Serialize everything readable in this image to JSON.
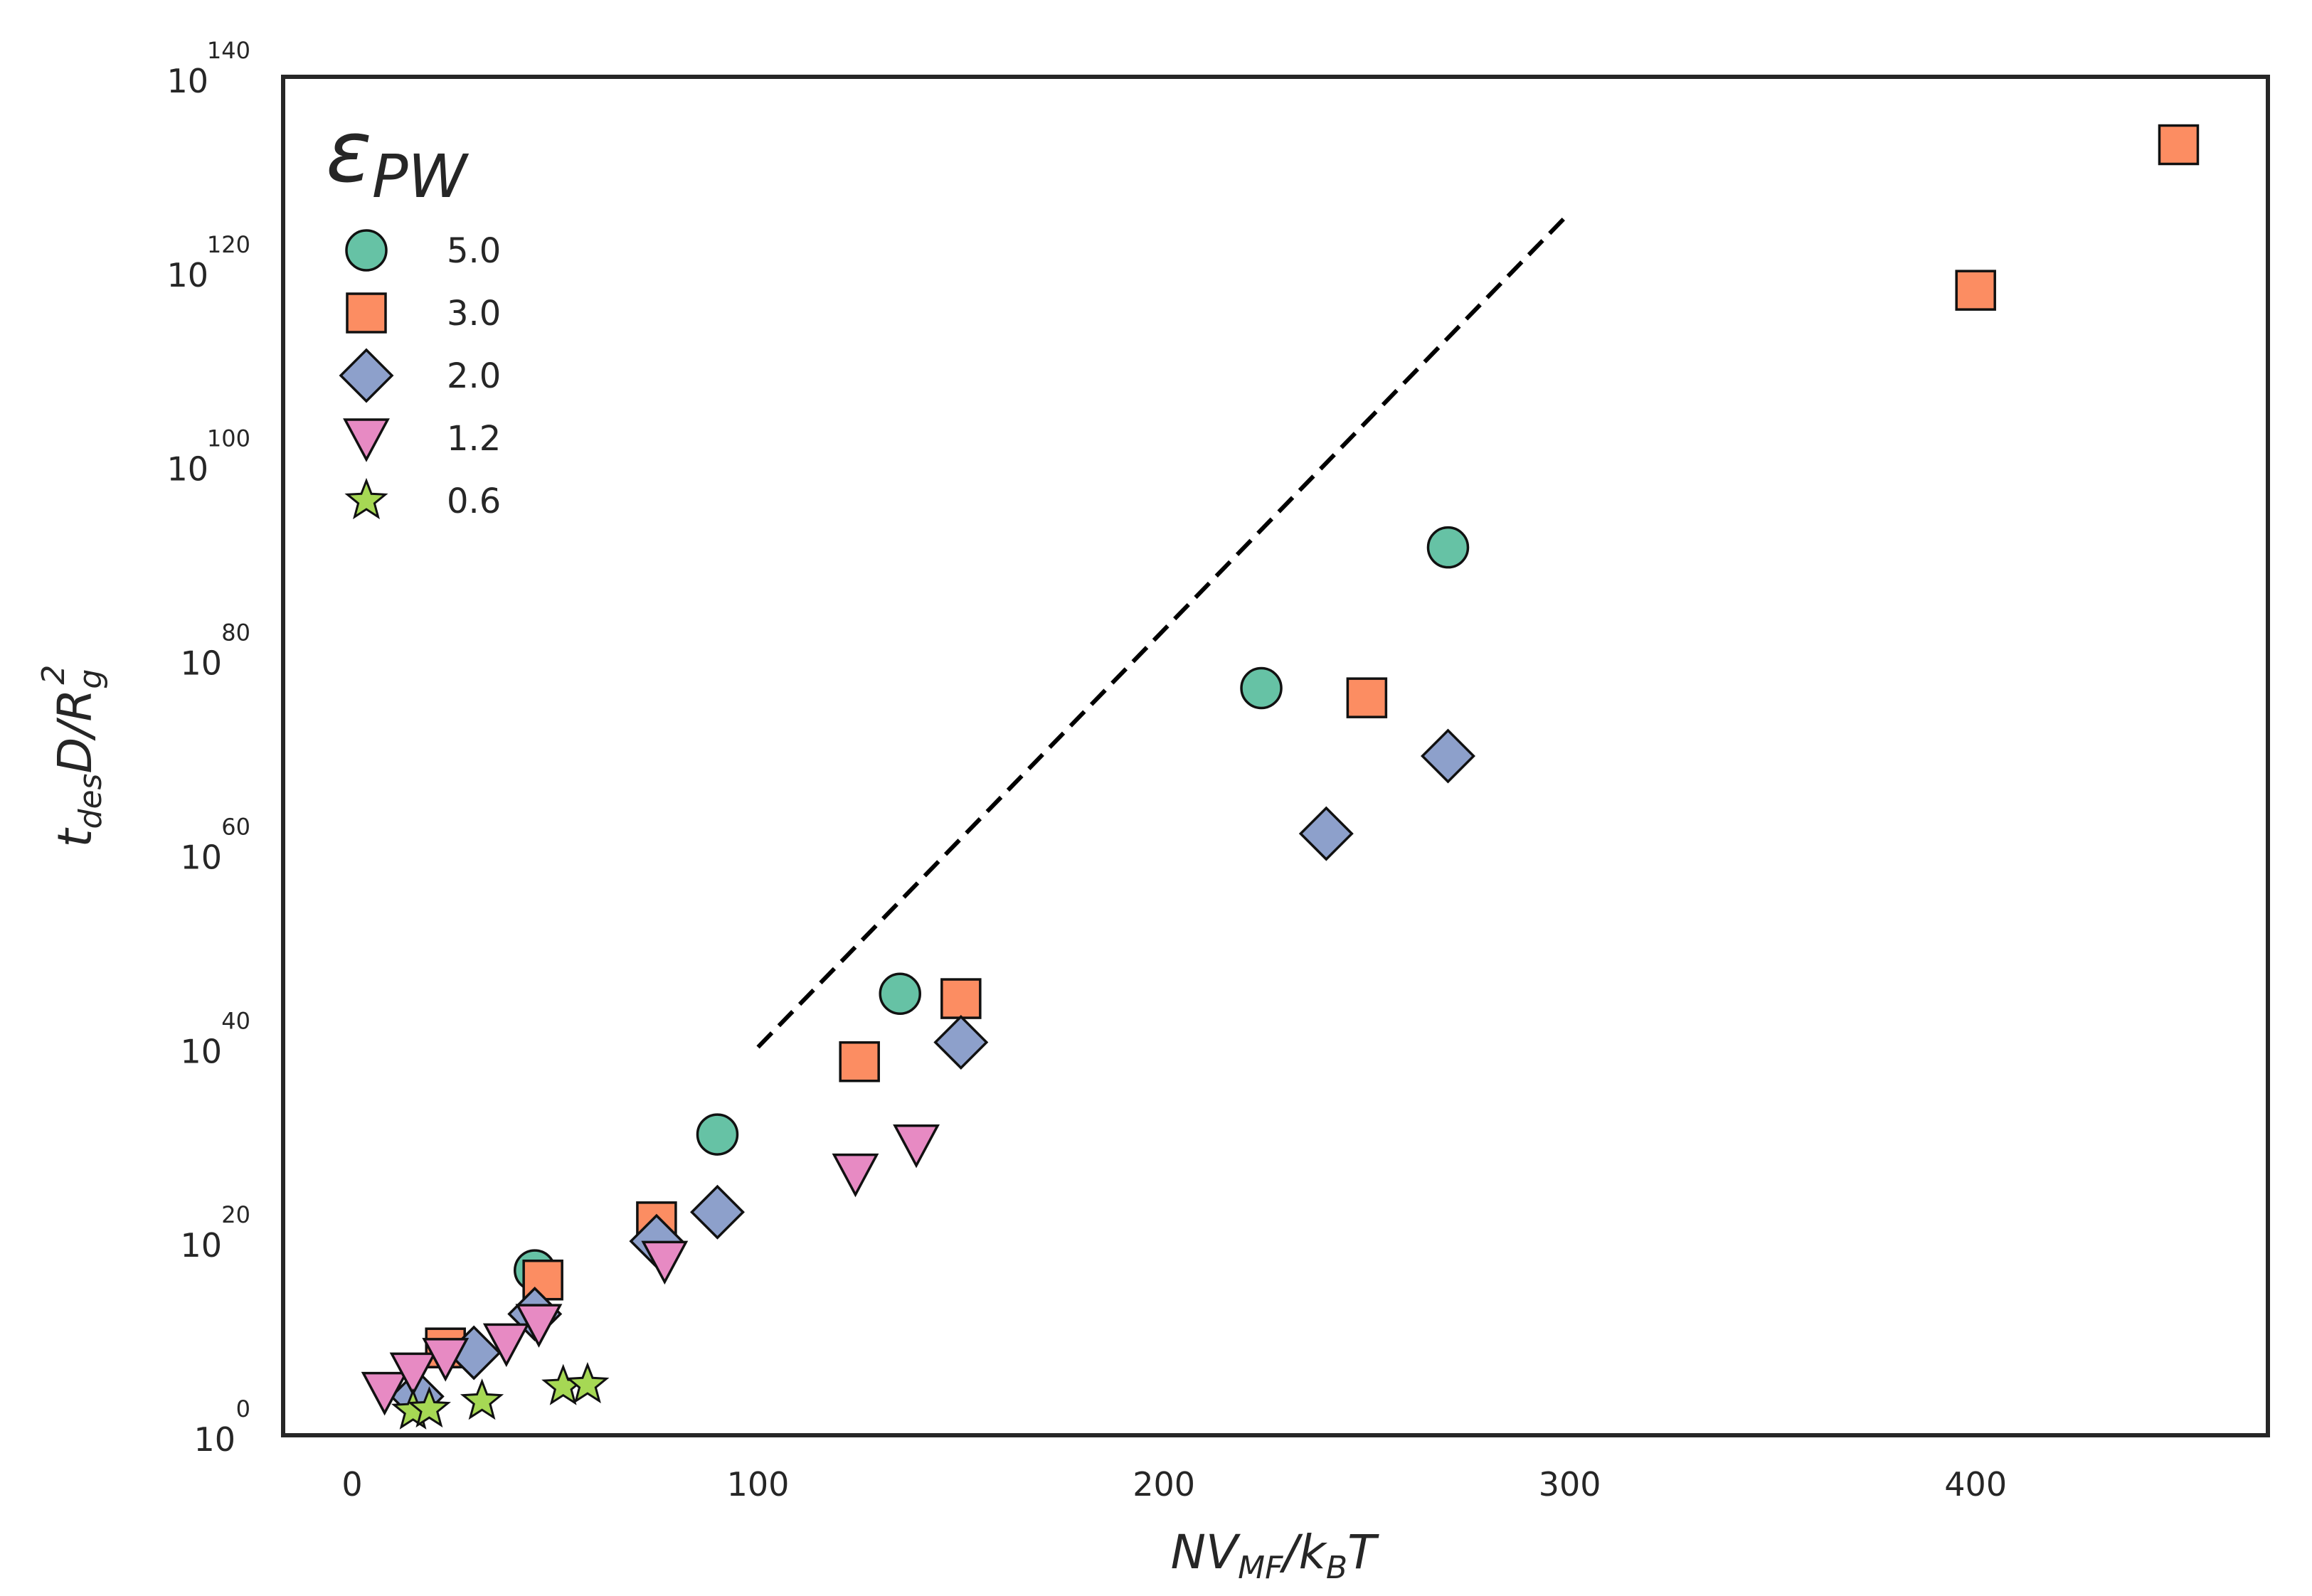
{
  "chart_data": {
    "type": "scatter",
    "title": "",
    "xlabel": {
      "main": "NV",
      "sub1": "MF",
      "mid": "/k",
      "sub2": "B",
      "end": "T"
    },
    "ylabel": {
      "main": "t",
      "sub1": "des",
      "mid": "D/R",
      "sub2": "g",
      "sup": "2"
    },
    "x_ticks": [
      "0",
      "100",
      "200",
      "300",
      "400"
    ],
    "x_tick_values": [
      0,
      100,
      200,
      300,
      400
    ],
    "y_ticks": [
      {
        "base": "10",
        "exp": "0",
        "value": 0
      },
      {
        "base": "10",
        "exp": "20",
        "value": 20
      },
      {
        "base": "10",
        "exp": "40",
        "value": 40
      },
      {
        "base": "10",
        "exp": "60",
        "value": 60
      },
      {
        "base": "10",
        "exp": "80",
        "value": 80
      },
      {
        "base": "10",
        "exp": "100",
        "value": 100
      },
      {
        "base": "10",
        "exp": "120",
        "value": 120
      },
      {
        "base": "10",
        "exp": "140",
        "value": 140
      }
    ],
    "xlim": [
      -17,
      472
    ],
    "ylim_log10": [
      0,
      140
    ],
    "y_scale": "log",
    "grid": false,
    "legend": {
      "title_main": "ε",
      "title_sub": "PW",
      "placement": "top-left"
    },
    "series": [
      {
        "name": "5.0",
        "marker": "circle",
        "color": "#66c2a5",
        "points": [
          [
            45,
            17
          ],
          [
            90,
            31
          ],
          [
            135,
            45.5
          ],
          [
            224,
            77
          ],
          [
            270,
            91.5
          ]
        ]
      },
      {
        "name": "3.0",
        "marker": "square",
        "color": "#fc8d62",
        "points": [
          [
            23,
            9
          ],
          [
            47,
            16
          ],
          [
            75,
            22
          ],
          [
            125,
            38.5
          ],
          [
            150,
            45
          ],
          [
            250,
            76
          ],
          [
            400,
            118
          ],
          [
            450,
            133
          ]
        ]
      },
      {
        "name": "2.0",
        "marker": "diamond",
        "color": "#8da0cb",
        "points": [
          [
            16,
            4
          ],
          [
            30,
            8.5
          ],
          [
            45,
            12.5
          ],
          [
            75,
            20
          ],
          [
            90,
            23
          ],
          [
            150,
            40.5
          ],
          [
            240,
            62
          ],
          [
            270,
            70
          ]
        ]
      },
      {
        "name": "1.2",
        "marker": "triangle-down",
        "color": "#e78ac3",
        "points": [
          [
            8,
            4.5
          ],
          [
            15,
            6.5
          ],
          [
            23,
            8
          ],
          [
            38,
            9.5
          ],
          [
            46,
            11.5
          ],
          [
            77,
            18
          ],
          [
            124,
            27
          ],
          [
            139,
            30
          ]
        ]
      },
      {
        "name": "0.6",
        "marker": "star",
        "color": "#a6d854",
        "points": [
          [
            15,
            2.5
          ],
          [
            19,
            2.7
          ],
          [
            32,
            3.5
          ],
          [
            52,
            5.0
          ],
          [
            58,
            5.2
          ]
        ]
      }
    ],
    "reference_line": {
      "style": "dashed",
      "color": "#000000",
      "x": [
        100,
        300
      ],
      "y": [
        40,
        126
      ]
    }
  }
}
